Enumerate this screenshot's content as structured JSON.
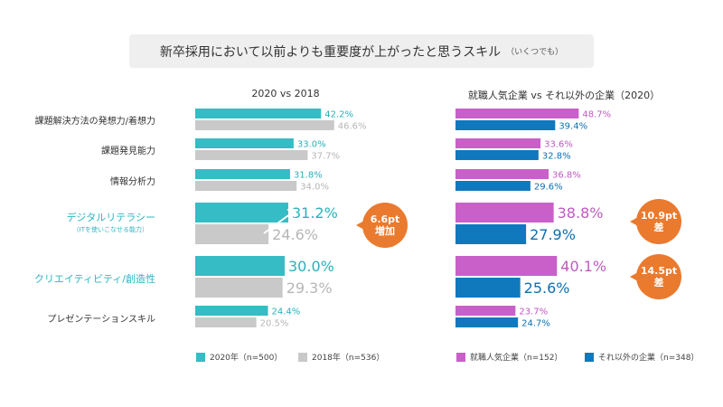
{
  "title": {
    "main": "新卒採用において以前よりも重要度が上がったと思うスキル",
    "sub": "（いくつでも）"
  },
  "categories": [
    {
      "label": "課題解決方法の発想力/着想力",
      "sub": "",
      "highlight": false
    },
    {
      "label": "課題発見能力",
      "sub": "",
      "highlight": false
    },
    {
      "label": "情報分析力",
      "sub": "",
      "highlight": false
    },
    {
      "label": "デジタルリテラシー",
      "sub": "（ITを使いこなせる能力）",
      "highlight": true
    },
    {
      "label": "クリエイティビティ/創造性",
      "sub": "",
      "highlight": true
    },
    {
      "label": "プレゼンテーションスキル",
      "sub": "",
      "highlight": false
    }
  ],
  "chart_data": [
    {
      "type": "bar",
      "title": "2020 vs 2018",
      "categories": [
        "課題解決方法の発想力/着想力",
        "課題発見能力",
        "情報分析力",
        "デジタルリテラシー",
        "クリエイティビティ/創造性",
        "プレゼンテーションスキル"
      ],
      "series": [
        {
          "name": "2020年（n=500）",
          "color": "#36bcc4",
          "labelColor": "#2ab0bb",
          "values": [
            42.2,
            33.0,
            31.8,
            31.2,
            30.0,
            24.4
          ]
        },
        {
          "name": "2018年（n=536）",
          "color": "#c9c9c9",
          "labelColor": "#b6b6b6",
          "values": [
            46.6,
            37.7,
            34.0,
            24.6,
            29.3,
            20.5
          ]
        }
      ],
      "value_labels": [
        [
          "42.2%",
          "33.0%",
          "31.8%",
          "31.2%",
          "30.0%",
          "24.4%"
        ],
        [
          "46.6%",
          "37.7%",
          "34.0%",
          "24.6%",
          "29.3%",
          "20.5%"
        ]
      ],
      "annotation": {
        "line1": "6.6pt",
        "line2": "増加"
      }
    },
    {
      "type": "bar",
      "title": "就職人気企業 vs それ以外の企業（2020）",
      "categories": [
        "課題解決方法の発想力/着想力",
        "課題発見能力",
        "情報分析力",
        "デジタルリテラシー",
        "クリエイティビティ/創造性",
        "プレゼンテーションスキル"
      ],
      "series": [
        {
          "name": "就職人気企業（n=152）",
          "color": "#c960c9",
          "labelColor": "#c05ac0",
          "values": [
            48.7,
            33.6,
            36.8,
            38.8,
            40.1,
            23.7
          ]
        },
        {
          "name": "それ以外の企業（n=348）",
          "color": "#1079bd",
          "labelColor": "#0f6fae",
          "values": [
            39.4,
            32.8,
            29.6,
            27.9,
            25.6,
            24.7
          ]
        }
      ],
      "value_labels": [
        [
          "48.7%",
          "33.6%",
          "36.8%",
          "38.8%",
          "40.1%",
          "23.7%"
        ],
        [
          "39.4%",
          "32.8%",
          "29.6%",
          "27.9%",
          "25.6%",
          "24.7%"
        ]
      ],
      "annotations": [
        {
          "line1": "10.9pt",
          "line2": "差"
        },
        {
          "line1": "14.5pt",
          "line2": "差"
        }
      ]
    }
  ]
}
